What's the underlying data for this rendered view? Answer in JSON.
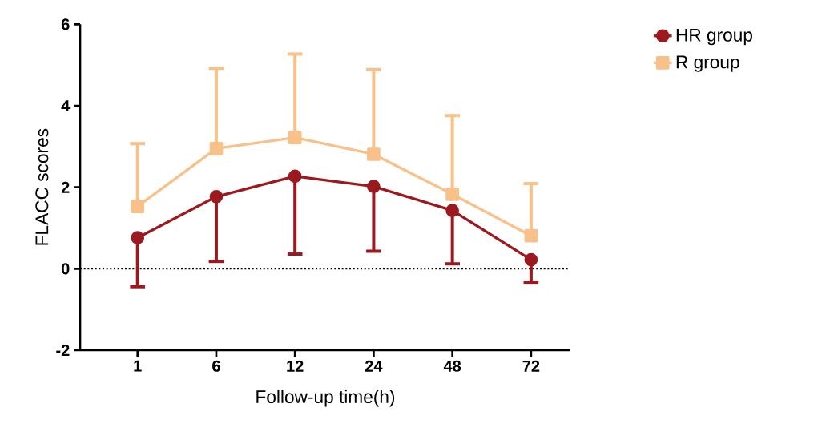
{
  "chart_data": {
    "type": "line",
    "xlabel": "Follow-up time(h)",
    "ylabel": "FLACC scores",
    "categories": [
      "1",
      "6",
      "12",
      "24",
      "48",
      "72"
    ],
    "series": [
      {
        "name": "HR group",
        "color": "#9b1a1f",
        "marker": "circle",
        "values": [
          0.76,
          1.77,
          2.27,
          2.02,
          1.43,
          0.22
        ],
        "errors": [
          [
            -0.44,
            0.76
          ],
          [
            0.18,
            1.77
          ],
          [
            0.36,
            2.27
          ],
          [
            0.43,
            2.02
          ],
          [
            0.12,
            1.43
          ],
          [
            -0.33,
            0.22
          ]
        ]
      },
      {
        "name": "R group",
        "color": "#f8c18a",
        "marker": "square",
        "values": [
          1.53,
          2.95,
          3.22,
          2.81,
          1.83,
          0.81
        ],
        "errors": [
          [
            1.53,
            3.07
          ],
          [
            2.95,
            4.92
          ],
          [
            3.22,
            5.27
          ],
          [
            2.81,
            4.89
          ],
          [
            1.83,
            3.76
          ],
          [
            0.81,
            2.09
          ]
        ]
      }
    ],
    "ylim": [
      -2,
      6
    ],
    "yticks": [
      -2,
      0,
      2,
      4,
      6
    ],
    "ref_lines": [
      {
        "axis": "y",
        "value": 0,
        "color": "#000000",
        "line_style": "dotted"
      }
    ],
    "legend": "top right",
    "grid": false,
    "line_style": "solid"
  }
}
